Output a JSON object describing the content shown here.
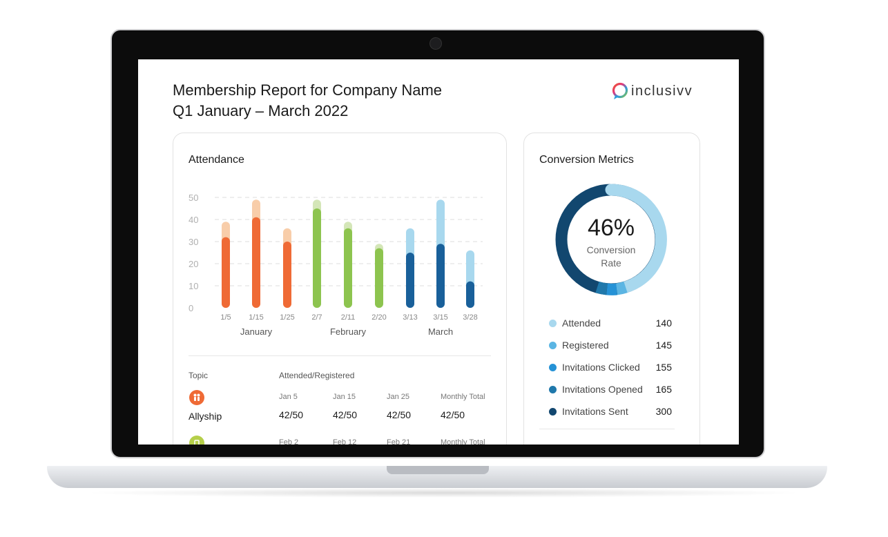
{
  "report": {
    "title": "Membership Report for Company Name",
    "subtitle": "Q1 January – March 2022",
    "logo_text": "inclusivv"
  },
  "attendance": {
    "title": "Attendance",
    "y_ticks": [
      "50",
      "40",
      "30",
      "20",
      "10",
      "0"
    ],
    "months": [
      "January",
      "February",
      "March"
    ]
  },
  "chart_data": {
    "type": "bar",
    "title": "Attendance",
    "categories": [
      "1/5",
      "1/15",
      "1/25",
      "2/7",
      "2/11",
      "2/20",
      "3/13",
      "3/15",
      "3/28"
    ],
    "series": [
      {
        "name": "Attended",
        "values": [
          32,
          41,
          30,
          45,
          36,
          27,
          25,
          29,
          12
        ]
      },
      {
        "name": "Registered",
        "values": [
          39,
          49,
          36,
          49,
          39,
          29,
          36,
          49,
          26
        ]
      }
    ],
    "ylim": [
      0,
      50
    ],
    "grid": true,
    "colors": {
      "january": {
        "attended": "#ef6a35",
        "registered": "#f8cda9"
      },
      "february": {
        "attended": "#8dc44f",
        "registered": "#d4e6b8"
      },
      "march": {
        "attended": "#19609a",
        "registered": "#a8d8ee"
      }
    }
  },
  "table": {
    "topic_header": "Topic",
    "ratio_header": "Attended/Registered",
    "rows": [
      {
        "topic": "Allyship",
        "icon": "people-icon",
        "color": "#ef6a35",
        "dates": [
          "Jan 5",
          "Jan 15",
          "Jan 25",
          "Monthly Total"
        ],
        "values": [
          "42/50",
          "42/50",
          "42/50",
          "42/50"
        ]
      },
      {
        "topic": "",
        "icon": "badge-icon",
        "color": "#b5cf4a",
        "dates": [
          "Feb 2",
          "Feb 12",
          "Feb 21",
          "Monthly Total"
        ]
      }
    ]
  },
  "conversion": {
    "title": "Conversion Metrics",
    "rate": "46%",
    "rate_label_1": "Conversion",
    "rate_label_2": "Rate",
    "legend": [
      {
        "label": "Attended",
        "value": "140",
        "color": "#a8d8ee"
      },
      {
        "label": "Registered",
        "value": "145",
        "color": "#5bb5e3"
      },
      {
        "label": "Invitations Clicked",
        "value": "155",
        "color": "#2592d6"
      },
      {
        "label": "Invitations Opened",
        "value": "165",
        "color": "#1f78ab"
      },
      {
        "label": "Invitations Sent",
        "value": "300",
        "color": "#12476f"
      }
    ]
  }
}
